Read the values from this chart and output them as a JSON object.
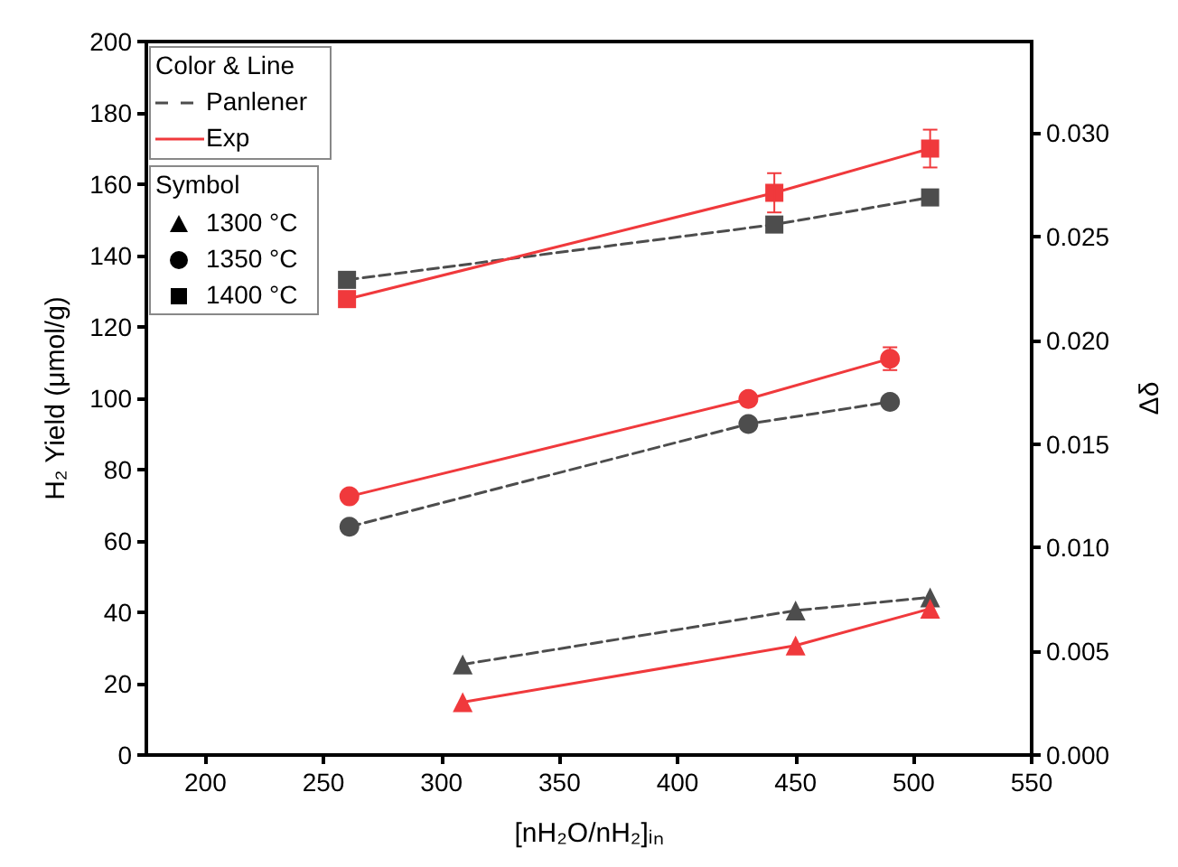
{
  "chart_data": {
    "type": "line",
    "xlabel": "[nH₂O/nH₂]ᵢₙ",
    "ylabel": "H₂ Yield (μmol/g)",
    "y2label": "Δδ",
    "legend_title": "Color & Line",
    "legend": "top left",
    "grid": false,
    "xlim": [
      175,
      550
    ],
    "xticks": [
      200,
      250,
      300,
      350,
      400,
      450,
      500,
      550
    ],
    "ylim": [
      0,
      200
    ],
    "yticks": [
      0,
      20,
      40,
      60,
      80,
      100,
      120,
      140,
      160,
      180,
      200
    ],
    "y2lim": [
      0,
      0.0344
    ],
    "y2ticks": [
      {
        "value": 0,
        "label": "0.000"
      },
      {
        "value": 0.005,
        "label": "0.005"
      },
      {
        "value": 0.01,
        "label": "0.010"
      },
      {
        "value": 0.015,
        "label": "0.015"
      },
      {
        "value": 0.02,
        "label": "0.020"
      },
      {
        "value": 0.025,
        "label": "0.025"
      },
      {
        "value": 0.03,
        "label": "0.030"
      }
    ],
    "annotations": [
      "Symbol",
      "1300 °C",
      "1350 °C",
      "1400 °C"
    ],
    "series": [
      {
        "name": "Panlener",
        "color": "#4d4d4d",
        "marker": "triangle",
        "line_style": "dashed",
        "x": [
          309,
          450,
          507
        ],
        "values": [
          25.4,
          40.5,
          44.2
        ]
      },
      {
        "name": "Exp",
        "color": "#f0393c",
        "marker": "triangle",
        "line_style": "solid",
        "x": [
          309,
          450,
          507
        ],
        "values": [
          14.8,
          30.7,
          41
        ]
      },
      {
        "color": "#4d4d4d",
        "marker": "circle",
        "line_style": "dashed",
        "x": [
          261,
          430,
          490
        ],
        "values": [
          64,
          92.8,
          99
        ]
      },
      {
        "color": "#f0393c",
        "marker": "circle",
        "line_style": "solid",
        "x": [
          261,
          430,
          490
        ],
        "values": [
          72.5,
          99.8,
          111.1
        ],
        "errors": [
          null,
          null,
          3.2
        ]
      },
      {
        "color": "#4d4d4d",
        "marker": "square",
        "line_style": "dashed",
        "x": [
          260,
          441,
          507
        ],
        "values": [
          133.2,
          148.7,
          156.3
        ]
      },
      {
        "color": "#f0393c",
        "marker": "square",
        "line_style": "solid",
        "x": [
          260,
          441,
          507
        ],
        "values": [
          127.8,
          157.6,
          170
        ],
        "errors": [
          null,
          5.5,
          5.3
        ]
      }
    ]
  }
}
